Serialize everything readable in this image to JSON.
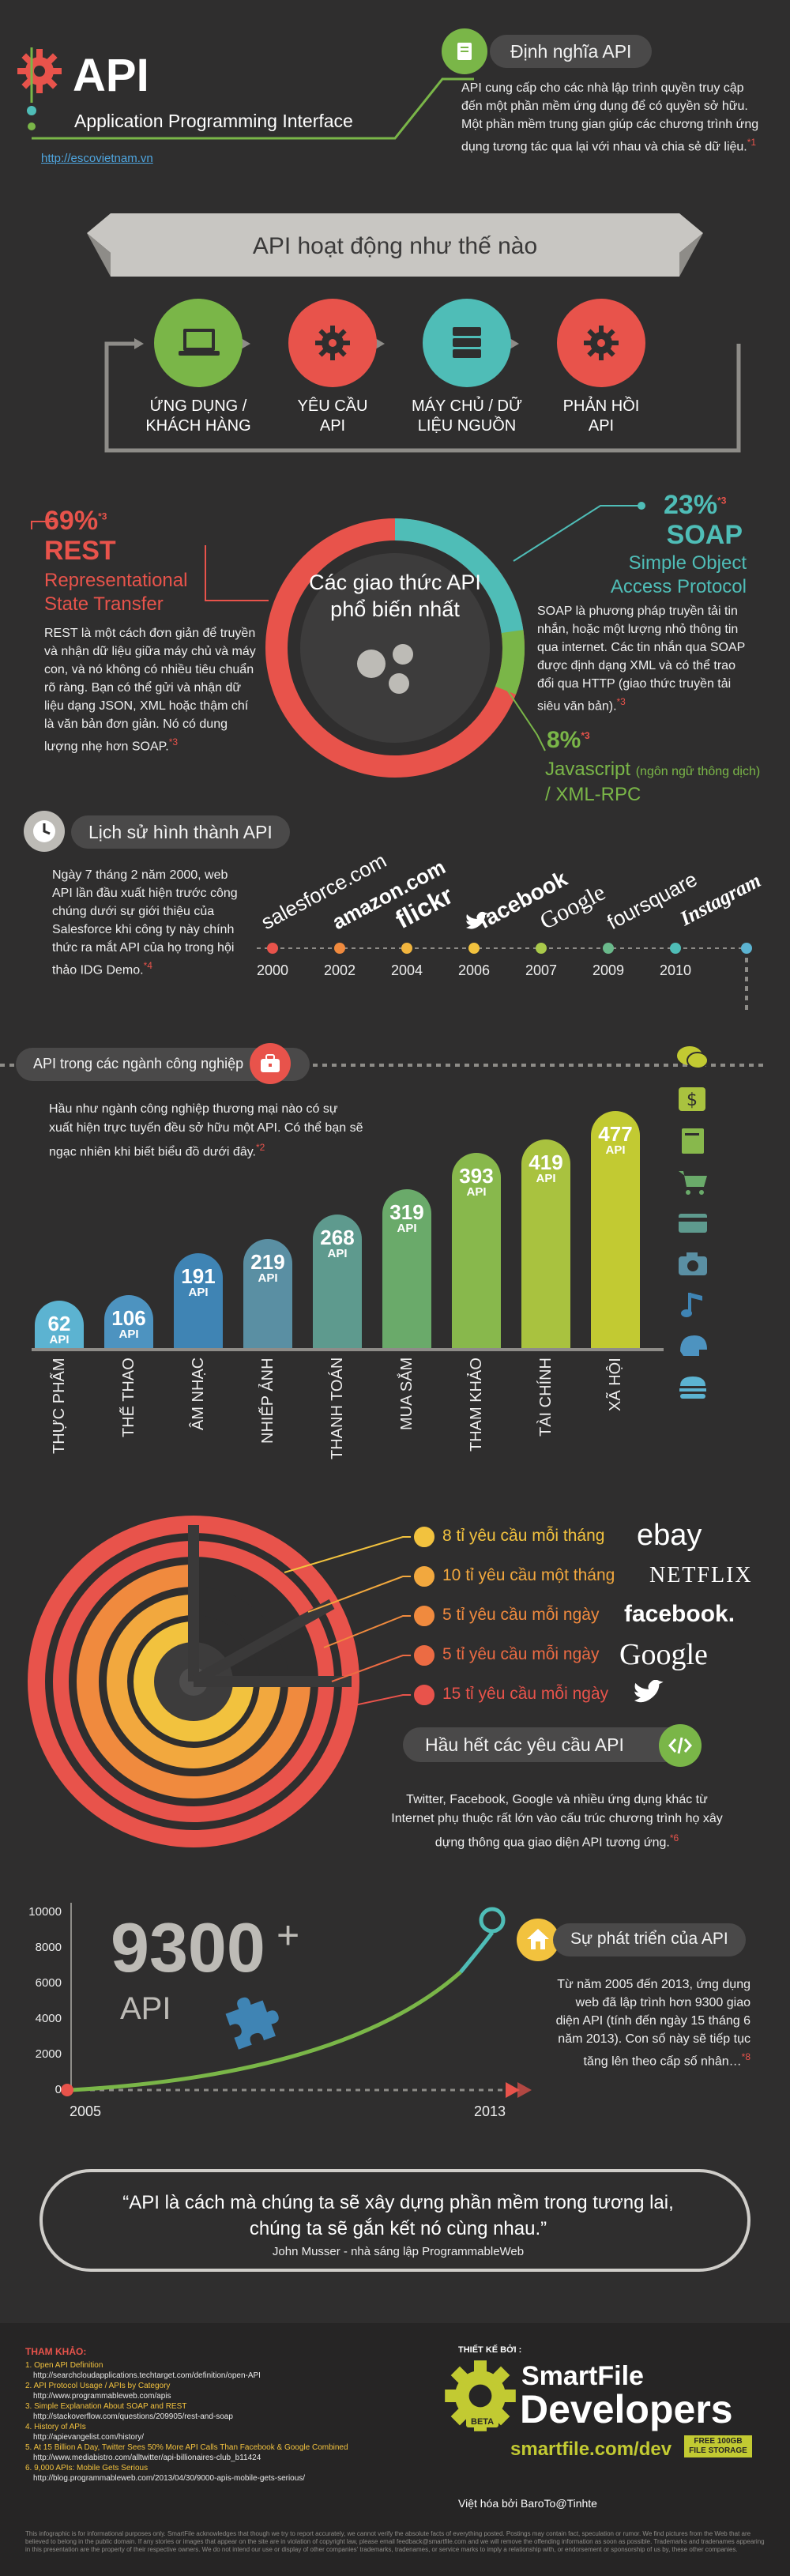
{
  "header": {
    "title": "API",
    "subtitle": "Application Programming Interface",
    "url": "http://escovietnam.vn"
  },
  "definition": {
    "title": "Định nghĩa API",
    "text": "API cung cấp cho các nhà lập trình quyền truy cập đến một phần mềm ứng dụng để có quyền sở hữu. Một phần mềm trung gian giúp các chương trình ứng dụng tương tác qua lại với nhau và chia sẻ dữ liệu.",
    "ref": "*1"
  },
  "how": {
    "title": "API hoạt động như thế nào",
    "steps": [
      {
        "label": "ỨNG DỤNG / KHÁCH HÀNG",
        "color": "#7ab648",
        "icon": "laptop-icon"
      },
      {
        "label": "YÊU CẦU API",
        "color": "#e8534b",
        "icon": "gear-icon"
      },
      {
        "label": "MÁY CHỦ / DỮ LIỆU NGUỒN",
        "color": "#4fbdb7",
        "icon": "server-icon"
      },
      {
        "label": "PHẢN HỒI API",
        "color": "#e8534b",
        "icon": "gear-icon"
      }
    ]
  },
  "protocols": {
    "center": "Các giao thức API phổ biến nhất",
    "rest": {
      "pct": "69%",
      "ref": "*3",
      "name": "REST",
      "full": "Representational State Transfer",
      "text": "REST là một cách đơn giản để truyền và nhận dữ liệu giữa máy chủ và máy con, và nó không có nhiều tiêu chuẩn rõ ràng. Bạn có thể gửi và nhận dữ liệu dạng JSON, XML hoặc thậm chí là văn bản đơn giản. Nó có dung lượng nhẹ hơn SOAP.",
      "textref": "*3",
      "color": "#e8534b"
    },
    "soap": {
      "pct": "23%",
      "ref": "*3",
      "name": "SOAP",
      "full": "Simple Object Access Protocol",
      "text": "SOAP là phương pháp truyền tải tin nhắn, hoặc một lượng nhỏ thông tin qua internet. Các tin nhắn qua SOAP được định dạng XML và có thể trao đổi qua HTTP (giao thức truyền tải siêu văn bản).",
      "textref": "*3",
      "color": "#4fbdb7"
    },
    "js": {
      "pct": "8%",
      "ref": "*3",
      "name": "Javascript",
      "note": "(ngôn ngữ thông dịch)",
      "name2": "/ XML-RPC",
      "color": "#7ab648"
    }
  },
  "history": {
    "title": "Lịch sử hình thành API",
    "text": "Ngày 7 tháng 2 năm 2000, web API lần đầu xuất hiện trước công chúng dưới sự giới thiệu của Salesforce khi công ty này chính thức ra mắt API của họ trong hội thảo IDG Demo.",
    "ref": "*4",
    "companies": [
      {
        "name": "salesforce.com",
        "year": "2000",
        "color": "#e8534b"
      },
      {
        "name": "amazon.com",
        "year": "2002",
        "color": "#f08a3e"
      },
      {
        "name": "flickr",
        "year": "2004",
        "color": "#f2b53e"
      },
      {
        "name": "facebook",
        "year": "2006",
        "color": "#f2c23e"
      },
      {
        "name": "Google",
        "year": "2007",
        "color": "#a9c94a"
      },
      {
        "name": "foursquare",
        "year": "2009",
        "color": "#6ab98b"
      },
      {
        "name": "Instagram",
        "year": "2010",
        "color": "#4fbdb7"
      }
    ]
  },
  "industry": {
    "title": "API trong các ngành công nghiệp",
    "text": "Hầu như ngành công nghiệp thương mại nào có sự xuất hiện trực tuyến đều sở hữu một API. Có thể bạn sẽ ngạc nhiên khi biết biểu đồ dưới đây.",
    "ref": "*2",
    "unit": "API",
    "bars": [
      {
        "label": "THỰC PHẨM",
        "value": 62,
        "color": "#5cb3d1"
      },
      {
        "label": "THỂ THAO",
        "value": 106,
        "color": "#4d93c0"
      },
      {
        "label": "ÂM NHẠC",
        "value": 191,
        "color": "#3f84b4"
      },
      {
        "label": "NHIẾP ẢNH",
        "value": 219,
        "color": "#5a8fa3"
      },
      {
        "label": "THANH TOÁN",
        "value": 268,
        "color": "#5e9a8e"
      },
      {
        "label": "MUA SẮM",
        "value": 319,
        "color": "#6aaa6a"
      },
      {
        "label": "THAM KHẢO",
        "value": 393,
        "color": "#88b84c"
      },
      {
        "label": "TÀI CHÍNH",
        "value": 419,
        "color": "#a9c23f"
      },
      {
        "label": "XÃ HỘI",
        "value": 477,
        "color": "#c2ca32"
      }
    ],
    "icons": [
      "chat-icon",
      "dollar-icon",
      "book-icon",
      "cart-icon",
      "card-icon",
      "camera-icon",
      "music-icon",
      "helmet-icon",
      "burger-icon"
    ]
  },
  "requests": {
    "items": [
      {
        "text": "8 tỉ yêu cầu mỗi tháng",
        "brand": "ebay",
        "color": "#f2c23e"
      },
      {
        "text": "10 tỉ yêu cầu một tháng",
        "brand": "NETFLIX",
        "color": "#f2a83e"
      },
      {
        "text": "5 tỉ yêu cầu mỗi ngày",
        "brand": "facebook.",
        "color": "#f08a3e"
      },
      {
        "text": "5 tỉ yêu cầu mỗi ngày",
        "brand": "Google",
        "color": "#ec6b43"
      },
      {
        "text": "15 tỉ yêu cầu mỗi ngày",
        "brand": "twitter-bird",
        "color": "#e8534b"
      }
    ],
    "most_title": "Hầu hết các yêu cầu API",
    "most_text": "Twitter, Facebook, Google và nhiều ứng dụng khác từ Internet phụ thuộc rất lớn vào cấu trúc chương trình họ xây dựng thông qua giao diện API tương ứng.",
    "ref": "*6"
  },
  "growth": {
    "big": "9300",
    "plus": "+",
    "unit": "API",
    "yticks": [
      "10000",
      "8000",
      "6000",
      "4000",
      "2000",
      "0"
    ],
    "x": [
      "2005",
      "2013"
    ],
    "title": "Sự phát triển của API",
    "text": "Từ năm 2005 đến 2013, ứng dụng web đã lập trình hơn 9300 giao diện API (tính đến ngày 15 tháng 6 năm 2013). Con số này sẽ tiếp tục tăng lên theo cấp số nhân…",
    "ref": "*8",
    "chart_data": {
      "type": "line",
      "x": [
        "2005",
        "2013"
      ],
      "values": [
        0,
        9300
      ],
      "ylim": [
        0,
        10000
      ]
    }
  },
  "quote": {
    "text": "“API là cách mà chúng ta sẽ xây dựng phần mềm trong tương lai, chúng ta sẽ gắn kết nó cùng nhau.”",
    "author": "John Musser  - nhà sáng lập ProgrammableWeb"
  },
  "refs": {
    "title": "THAM KHẢO:",
    "items": [
      [
        "1. Open API Definition",
        "http://searchcloudapplications.techtarget.com/definition/open-API"
      ],
      [
        "2. API Protocol Usage / APIs by Category",
        "http://www.programmableweb.com/apis"
      ],
      [
        "3. Simple Explanation About SOAP and REST",
        "http://stackoverflow.com/questions/209905/rest-and-soap"
      ],
      [
        "4. History of APIs",
        "http://apievangelist.com/history/"
      ],
      [
        "5. At 15 Billion A Day, Twitter Sees 50% More API Calls Than Facebook & Google Combined",
        "http://www.mediabistro.com/alltwitter/api-billionaires-club_b11424"
      ],
      [
        "6. 9,000 APIs: Mobile Gets Serious",
        "http://blog.programmableweb.com/2013/04/30/9000-apis-mobile-gets-serious/"
      ]
    ]
  },
  "design": {
    "by": "THIẾT KẾ BỞI :",
    "brand1": "SmartFile",
    "brand2": "Developers",
    "site": "smartfile.com/dev",
    "free": "FREE 100GB FILE STORAGE",
    "beta": "BETA",
    "viet": "Việt hóa bởi BaroTo@Tinhte"
  },
  "disclaimer": "This infographic is for informational purposes only. SmartFile acknowledges that though we try to report accurately, we cannot verify the absolute facts of everything posted. Postings may contain fact, speculation or rumor. We find pictures from the Web that are believed to belong in the public domain. If any stories or images that appear on the site are in violation of copyright law, please email feedback@smartfile.com and we will remove the offending information as soon as possible. Trademarks and tradenames appearing in this presentation are the property of their respective owners. We do not intend our use or display of other companies' trademarks, tradenames, or service marks to imply a relationship with, or endorsement or sponsorship of us by, these other companies."
}
